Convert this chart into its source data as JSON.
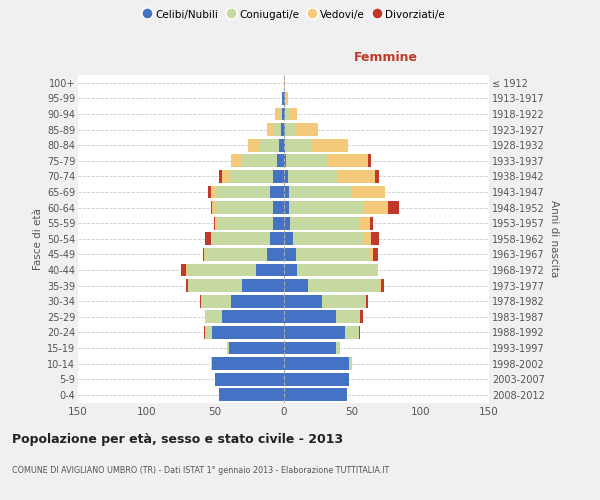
{
  "age_groups": [
    "0-4",
    "5-9",
    "10-14",
    "15-19",
    "20-24",
    "25-29",
    "30-34",
    "35-39",
    "40-44",
    "45-49",
    "50-54",
    "55-59",
    "60-64",
    "65-69",
    "70-74",
    "75-79",
    "80-84",
    "85-89",
    "90-94",
    "95-99",
    "100+"
  ],
  "birth_years": [
    "2008-2012",
    "2003-2007",
    "1998-2002",
    "1993-1997",
    "1988-1992",
    "1983-1987",
    "1978-1982",
    "1973-1977",
    "1968-1972",
    "1963-1967",
    "1958-1962",
    "1953-1957",
    "1948-1952",
    "1943-1947",
    "1938-1942",
    "1933-1937",
    "1928-1932",
    "1923-1927",
    "1918-1922",
    "1913-1917",
    "≤ 1912"
  ],
  "colors": {
    "celibe": "#4472c4",
    "coniugato": "#c5d9a0",
    "vedovo": "#f5c97a",
    "divorziato": "#c0392b"
  },
  "males": {
    "celibe": [
      47,
      50,
      52,
      40,
      52,
      45,
      38,
      30,
      20,
      12,
      10,
      8,
      8,
      10,
      8,
      5,
      3,
      2,
      1,
      1,
      0
    ],
    "coniugato": [
      0,
      0,
      1,
      1,
      5,
      12,
      22,
      40,
      50,
      45,
      42,
      40,
      42,
      40,
      32,
      25,
      15,
      5,
      2,
      0,
      0
    ],
    "vedovo": [
      0,
      0,
      0,
      0,
      0,
      0,
      0,
      0,
      1,
      1,
      1,
      2,
      2,
      3,
      5,
      8,
      8,
      5,
      3,
      0,
      0
    ],
    "divorziato": [
      0,
      0,
      0,
      0,
      1,
      0,
      1,
      1,
      4,
      1,
      4,
      1,
      1,
      2,
      2,
      0,
      0,
      0,
      0,
      0,
      0
    ]
  },
  "females": {
    "nubile": [
      46,
      48,
      48,
      38,
      45,
      38,
      28,
      18,
      10,
      9,
      7,
      5,
      4,
      4,
      3,
      2,
      1,
      1,
      1,
      1,
      0
    ],
    "coniugata": [
      0,
      0,
      2,
      3,
      10,
      18,
      32,
      52,
      58,
      54,
      52,
      50,
      54,
      46,
      36,
      30,
      20,
      8,
      3,
      0,
      0
    ],
    "vedova": [
      0,
      0,
      0,
      0,
      0,
      0,
      0,
      1,
      1,
      2,
      5,
      8,
      18,
      24,
      28,
      30,
      26,
      16,
      6,
      2,
      1
    ],
    "divorziata": [
      0,
      0,
      0,
      0,
      1,
      2,
      2,
      2,
      0,
      4,
      6,
      2,
      8,
      0,
      3,
      2,
      0,
      0,
      0,
      0,
      0
    ]
  },
  "title": "Popolazione per età, sesso e stato civile - 2013",
  "subtitle": "COMUNE DI AVIGLIANO UMBRO (TR) - Dati ISTAT 1° gennaio 2013 - Elaborazione TUTTITALIA.IT",
  "xlabel_femmine": "Femmine",
  "ylabel_left": "Fasce di età",
  "ylabel_right": "Anni di nascita",
  "xlim": 150,
  "legend_labels": [
    "Celibi/Nubili",
    "Coniugati/e",
    "Vedovi/e",
    "Divorziati/e"
  ],
  "bg_color": "#f0f0f0",
  "plot_bg_color": "#ffffff",
  "grid_color": "#cccccc"
}
